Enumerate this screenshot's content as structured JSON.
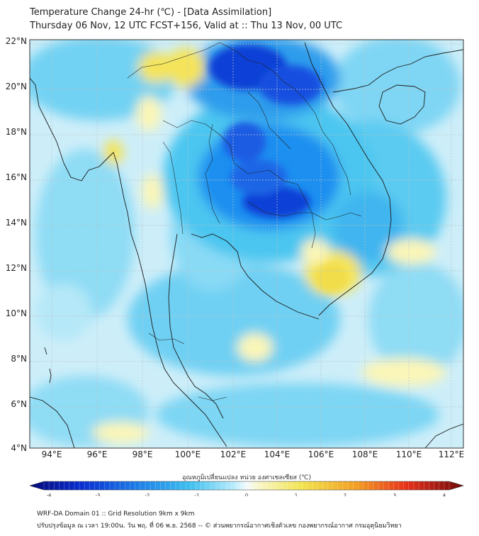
{
  "title_line1": "Temperature Change 24-hr (℃) - [Data Assimilation]",
  "title_line2": "Thursday 06 Nov, 12 UTC FCST+156, Valid at :: Thu 13 Nov, 00 UTC",
  "lat_labels": [
    "22°N",
    "20°N",
    "18°N",
    "16°N",
    "14°N",
    "12°N",
    "10°N",
    "8°N",
    "6°N",
    "4°N"
  ],
  "lon_labels": [
    "94°E",
    "96°E",
    "98°E",
    "100°E",
    "102°E",
    "104°E",
    "106°E",
    "108°E",
    "110°E",
    "112°E"
  ],
  "colorbar_label": "อุณหภูมิเปลี่ยนแปลง หน่วย องศาเซลเซียส (℃)",
  "colorbar_ticks": [
    "-4",
    "-3",
    "-2",
    "-1",
    "0",
    "1",
    "2",
    "3",
    "4"
  ],
  "footer_line1": "WRF-DA Domain 01 :: Grid Resolution 9km x 9km",
  "footer_line2": "ปรับปรุงข้อมูล ณ เวลา 19:00น. วัน พฤ. ที่ 06 พ.ย. 2568 -- © ส่วนพยากรณ์อากาศเชิงตัวเลข กองพยากรณ์อากาศ กรมอุตุนิยมวิทยา",
  "colors": {
    "sea_background": "#cdeef9",
    "light_cyan": "#9fe0f7",
    "cyan": "#4cc6f0",
    "blue": "#1e8ff0",
    "dark_blue": "#0b3fd6",
    "pale_yellow": "#fbf6b8",
    "yellow": "#f5e45a",
    "gridline": "#b9c3c8",
    "coast": "#1a1a1a"
  }
}
